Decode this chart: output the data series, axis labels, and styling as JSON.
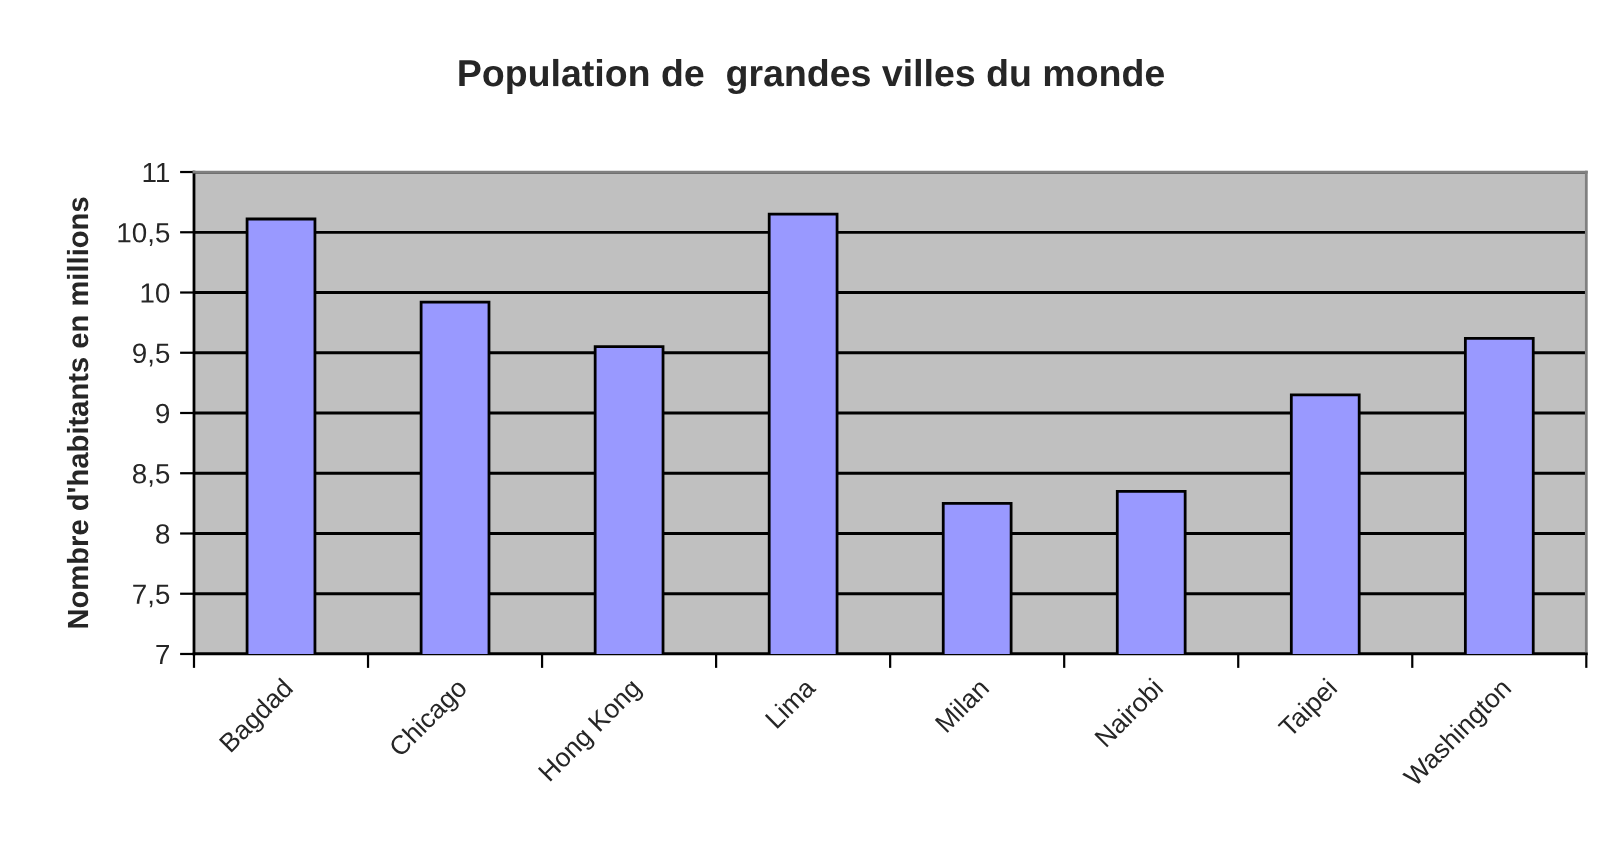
{
  "chart_data": {
    "type": "bar",
    "title": "Population de  grandes villes du monde",
    "ylabel": "Nombre d'habitants en millions",
    "categories": [
      "Bagdad",
      "Chicago",
      "Hong Kong",
      "Lima",
      "Milan",
      "Nairobi",
      "Taipei",
      "Washington"
    ],
    "values": [
      10.61,
      9.92,
      9.55,
      10.65,
      8.25,
      8.35,
      9.15,
      9.62
    ],
    "color": "#9999ff",
    "ylim": [
      7,
      11
    ],
    "yticks": [
      7,
      {
        "value": 7.5,
        "label": "7,5"
      },
      8,
      {
        "value": 8.5,
        "label": "8,5"
      },
      9,
      {
        "value": 9.5,
        "label": "9,5"
      },
      10,
      {
        "value": 10.5,
        "label": "10,5"
      },
      11
    ],
    "grid": "y"
  }
}
